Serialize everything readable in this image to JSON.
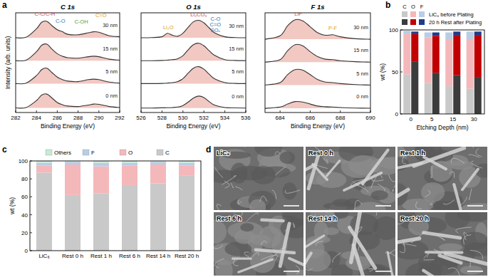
{
  "panel_labels": [
    "a",
    "b",
    "c",
    "d"
  ],
  "chart_data": [
    {
      "type": "line",
      "title": "C 1s",
      "x_label": "Binding Energy (eV)",
      "y_label": "Intensity (arb. units)",
      "x": [
        282,
        283,
        284,
        284.5,
        285,
        285.5,
        286,
        286.5,
        287,
        288,
        289,
        289.5,
        290,
        291,
        292
      ],
      "xlim": [
        282,
        292
      ],
      "xticks": [
        282,
        284,
        286,
        288,
        290,
        292
      ],
      "ylim": [
        0,
        10
      ],
      "tick_labels": "x",
      "series": [
        {
          "name": "0 nm",
          "color": "#333333",
          "values": [
            0.46,
            0.5,
            1.2,
            1.75,
            1.85,
            1.45,
            1.0,
            0.78,
            0.65,
            0.6,
            0.75,
            0.85,
            0.82,
            0.6,
            0.5
          ]
        },
        {
          "name": "5 nm",
          "color": "#333333",
          "values": [
            2.9,
            2.95,
            3.7,
            4.3,
            4.45,
            4.0,
            3.55,
            3.3,
            3.15,
            3.1,
            3.3,
            3.35,
            3.3,
            3.05,
            2.95
          ]
        },
        {
          "name": "15 nm",
          "color": "#333333",
          "values": [
            5.2,
            5.25,
            6.1,
            6.75,
            6.85,
            6.35,
            5.9,
            5.65,
            5.5,
            5.45,
            5.6,
            5.65,
            5.6,
            5.35,
            5.25
          ]
        },
        {
          "name": "30 nm",
          "color": "#333333",
          "values": [
            7.5,
            7.55,
            8.4,
            9.05,
            9.15,
            8.7,
            8.3,
            8.1,
            7.85,
            7.8,
            8.0,
            8.1,
            8.05,
            7.7,
            7.6
          ]
        }
      ],
      "annotations": [
        {
          "text": "C-C/C-H",
          "x": 284.8,
          "y": 9.75,
          "color": "#c0504d"
        },
        {
          "text": "C-O",
          "x": 286.3,
          "y": 9.0,
          "color": "#2e75b6"
        },
        {
          "text": "C-OH",
          "x": 288.3,
          "y": 8.9,
          "color": "#4e9a5a"
        },
        {
          "text": "C=O",
          "x": 290.2,
          "y": 9.6,
          "color": "#d9a021"
        }
      ]
    },
    {
      "type": "line",
      "title": "O 1s",
      "x_label": "Binding Energy (eV)",
      "x": [
        526,
        527,
        528,
        528.5,
        529,
        529.5,
        530,
        530.5,
        531,
        531.5,
        532,
        532.5,
        533,
        534,
        535,
        536
      ],
      "xlim": [
        526,
        536
      ],
      "xticks": [
        526,
        528,
        530,
        532,
        534,
        536
      ],
      "ylim": [
        0,
        10
      ],
      "tick_labels": "x",
      "series": [
        {
          "name": "0 nm",
          "color": "#333333",
          "values": [
            0.45,
            0.45,
            0.47,
            0.48,
            0.5,
            0.55,
            0.7,
            1.05,
            1.45,
            1.65,
            1.5,
            1.1,
            0.75,
            0.5,
            0.46,
            0.45
          ]
        },
        {
          "name": "5 nm",
          "color": "#333333",
          "values": [
            2.9,
            2.9,
            2.92,
            2.95,
            3.0,
            3.1,
            3.4,
            3.95,
            4.45,
            4.6,
            4.35,
            3.85,
            3.4,
            3.0,
            2.92,
            2.9
          ]
        },
        {
          "name": "15 nm",
          "color": "#333333",
          "values": [
            5.2,
            5.2,
            5.22,
            5.25,
            5.3,
            5.4,
            5.7,
            6.3,
            6.8,
            6.95,
            6.7,
            6.2,
            5.75,
            5.3,
            5.22,
            5.2
          ]
        },
        {
          "name": "30 nm",
          "color": "#333333",
          "values": [
            7.5,
            7.52,
            7.6,
            7.95,
            7.75,
            7.65,
            7.95,
            8.55,
            9.1,
            9.25,
            9.0,
            8.5,
            8.0,
            7.6,
            7.52,
            7.5
          ]
        }
      ],
      "annotations": [
        {
          "text": "Li₂O",
          "x": 528.6,
          "y": 8.35,
          "color": "#d9a021"
        },
        {
          "text": "Li₂CO₃",
          "x": 531.5,
          "y": 9.65,
          "color": "#c0504d"
        },
        {
          "text": "C-O",
          "x": 533.1,
          "y": 9.2,
          "color": "#2e75b6"
        },
        {
          "text": "C=O",
          "x": 533.1,
          "y": 8.65,
          "color": "#2e75b6"
        },
        {
          "text": "SOₓ",
          "x": 533.1,
          "y": 8.1,
          "color": "#2e75b6"
        }
      ]
    },
    {
      "type": "line",
      "title": "F 1s",
      "x_label": "Binding Energy (eV)",
      "x": [
        683,
        684,
        684.5,
        685,
        685.5,
        686,
        686.5,
        687,
        687.5,
        688,
        689,
        690
      ],
      "xlim": [
        683,
        690
      ],
      "xticks": [
        684,
        686,
        688,
        690
      ],
      "ylim": [
        0,
        10
      ],
      "tick_labels": "x",
      "series": [
        {
          "name": "0 nm",
          "color": "#333333",
          "values": [
            0.42,
            0.55,
            0.85,
            1.1,
            1.05,
            0.85,
            0.65,
            0.58,
            0.55,
            0.5,
            0.45,
            0.43
          ]
        },
        {
          "name": "5 nm",
          "color": "#333333",
          "values": [
            2.75,
            3.0,
            3.8,
            4.3,
            4.25,
            3.8,
            3.3,
            3.05,
            3.0,
            2.9,
            2.8,
            2.75
          ]
        },
        {
          "name": "15 nm",
          "color": "#333333",
          "values": [
            5.05,
            5.3,
            6.2,
            6.8,
            6.7,
            6.1,
            5.6,
            5.35,
            5.3,
            5.2,
            5.1,
            5.05
          ]
        },
        {
          "name": "30 nm",
          "color": "#333333",
          "values": [
            7.35,
            7.7,
            8.7,
            9.3,
            9.2,
            8.6,
            8.0,
            7.75,
            7.8,
            7.6,
            7.4,
            7.35
          ]
        }
      ],
      "annotations": [
        {
          "text": "LiF",
          "x": 685.2,
          "y": 9.75,
          "color": "#c0504d"
        },
        {
          "text": "P-F",
          "x": 687.5,
          "y": 8.3,
          "color": "#d9a021"
        }
      ]
    },
    {
      "type": "bar",
      "stacked": true,
      "x_label": "Etching Depth (nm)",
      "y_label": "wt (%)",
      "categories": [
        "0",
        "5",
        "15",
        "30"
      ],
      "ylim": [
        0,
        100
      ],
      "yticks": [
        0,
        50,
        100
      ],
      "components": [
        "C",
        "O",
        "F"
      ],
      "series": [
        {
          "name": "LiC₆ before Plating",
          "colors": [
            "#c9c9c9",
            "#f4b8bb",
            "#b9cde6"
          ],
          "values": [
            [
              47,
              37,
              33,
              30
            ],
            [
              48,
              54,
              56,
              59
            ],
            [
              4,
              6,
              8,
              9
            ]
          ]
        },
        {
          "name": "20 h Rest after Plating",
          "colors": [
            "#3c3c3c",
            "#c00000",
            "#1f3b8c"
          ],
          "values": [
            [
              62,
              49,
              46,
              44
            ],
            [
              33,
              44,
              48,
              50
            ],
            [
              3,
              4,
              4,
              4
            ]
          ]
        }
      ]
    },
    {
      "type": "bar",
      "stacked": true,
      "y_label": "wt (%)",
      "legend": "top",
      "categories": [
        "LiC₆",
        "Rest 0 h",
        "Rest 1 h",
        "Rest 6 h",
        "Rest 14 h",
        "Rest 20 h"
      ],
      "ylim": [
        0,
        100
      ],
      "yticks": [
        0,
        20,
        40,
        60,
        80,
        100
      ],
      "series": [
        {
          "name": "C",
          "color": "#c9c9c9",
          "values": [
            87,
            62,
            64,
            73,
            75,
            84
          ]
        },
        {
          "name": "O",
          "color": "#f4b8bb",
          "values": [
            8,
            34,
            30,
            22,
            21,
            11
          ]
        },
        {
          "name": "F",
          "color": "#b9cde6",
          "values": [
            3,
            3,
            4,
            3,
            3,
            3
          ]
        },
        {
          "name": "Others",
          "color": "#c6ebd5",
          "values": [
            2,
            1,
            2,
            2,
            1,
            2
          ]
        }
      ]
    }
  ],
  "images": [
    {
      "label": "LiC₆"
    },
    {
      "label": "Rest 0 h"
    },
    {
      "label": "Rest 1 h"
    },
    {
      "label": "Rest 6 h"
    },
    {
      "label": "Rest 14 h"
    },
    {
      "label": "Rest 20 h"
    }
  ]
}
